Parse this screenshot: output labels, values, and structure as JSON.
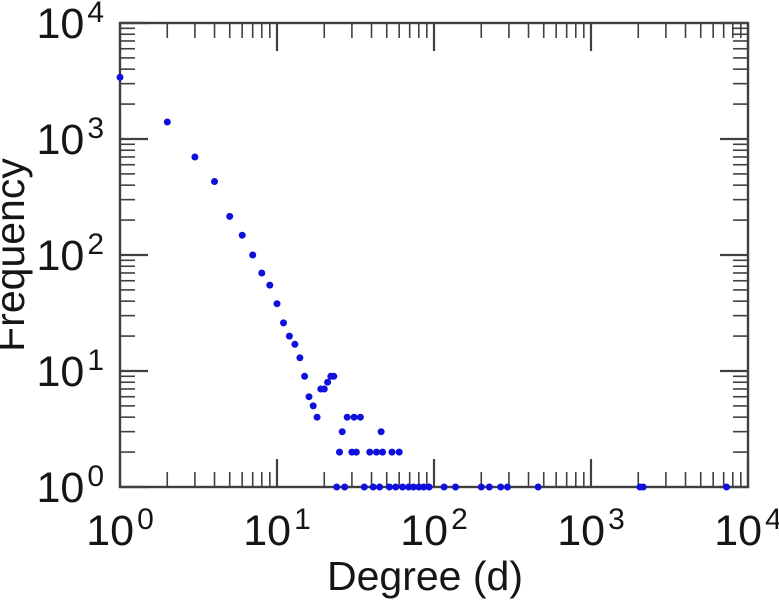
{
  "page": {
    "background": "#ffffff"
  },
  "chart_data": {
    "type": "scatter",
    "title": "",
    "xlabel": "Degree (d)",
    "ylabel": "Frequency",
    "x_scale": "log",
    "y_scale": "log",
    "xlim": [
      1,
      10000
    ],
    "ylim": [
      1,
      10000
    ],
    "grid": false,
    "legend": "none",
    "tick_label_base": "10",
    "x_tick_exponents": [
      0,
      1,
      2,
      3,
      4
    ],
    "y_tick_exponents": [
      0,
      1,
      2,
      3,
      4
    ],
    "minor_tick_multiples": [
      2,
      3,
      4,
      5,
      6,
      7,
      8,
      9
    ],
    "tick_style": "inward all four sides, boxed frame",
    "marker": {
      "shape": "circle",
      "color": "#1010dc",
      "radius_px": 3.5
    },
    "frame_color": "#404040",
    "text_color": "#151515",
    "background": "#ffffff",
    "points": [
      [
        1,
        3400
      ],
      [
        2,
        1400
      ],
      [
        3,
        700
      ],
      [
        4,
        430
      ],
      [
        5,
        215
      ],
      [
        6,
        148
      ],
      [
        7,
        100
      ],
      [
        8,
        70
      ],
      [
        9,
        55
      ],
      [
        10,
        38
      ],
      [
        11,
        26
      ],
      [
        12,
        20
      ],
      [
        13,
        17
      ],
      [
        14,
        13
      ],
      [
        15,
        9
      ],
      [
        16,
        6
      ],
      [
        17,
        5
      ],
      [
        18,
        4
      ],
      [
        19,
        7
      ],
      [
        20,
        7
      ],
      [
        21,
        8
      ],
      [
        22,
        9
      ],
      [
        23,
        9
      ],
      [
        24,
        1
      ],
      [
        25,
        2
      ],
      [
        26,
        3
      ],
      [
        27,
        1
      ],
      [
        28,
        4
      ],
      [
        30,
        2
      ],
      [
        31,
        4
      ],
      [
        32,
        2
      ],
      [
        34,
        4
      ],
      [
        36,
        1
      ],
      [
        39,
        2
      ],
      [
        41,
        1
      ],
      [
        43,
        2
      ],
      [
        45,
        1
      ],
      [
        46,
        3
      ],
      [
        47,
        2
      ],
      [
        52,
        1
      ],
      [
        54,
        2
      ],
      [
        57,
        1
      ],
      [
        60,
        2
      ],
      [
        63,
        1
      ],
      [
        69,
        1
      ],
      [
        74,
        1
      ],
      [
        80,
        1
      ],
      [
        86,
        1
      ],
      [
        93,
        1
      ],
      [
        116,
        1
      ],
      [
        137,
        1
      ],
      [
        200,
        1
      ],
      [
        225,
        1
      ],
      [
        266,
        1
      ],
      [
        294,
        1
      ],
      [
        460,
        1
      ],
      [
        2050,
        1
      ],
      [
        2150,
        1
      ],
      [
        7300,
        1
      ]
    ]
  }
}
